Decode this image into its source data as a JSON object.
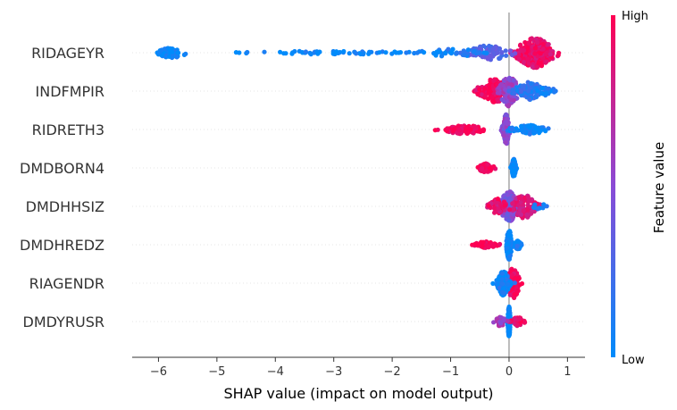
{
  "chart_data": {
    "type": "scatter",
    "subtype": "shap-beeswarm",
    "title": "",
    "xlabel": "SHAP value (impact on model output)",
    "ylabel": "",
    "xlim": [
      -6.45,
      1.3
    ],
    "xticks": [
      -6,
      -5,
      -4,
      -3,
      -2,
      -1,
      0,
      1
    ],
    "xtick_labels": [
      "−6",
      "−5",
      "−4",
      "−3",
      "−2",
      "−1",
      "0",
      "1"
    ],
    "colorbar": {
      "title": "Feature value",
      "high_label": "High",
      "low_label": "Low",
      "high_color": "#ff0052",
      "low_color": "#008bfb"
    },
    "features": [
      {
        "name": "RIDAGEYR",
        "clusters": [
          {
            "center": 0.45,
            "spread": 0.3,
            "count": 280,
            "color_value": 0.92,
            "width": 1.0
          },
          {
            "center": -0.35,
            "spread": 0.35,
            "count": 70,
            "color_value": 0.3,
            "width": 0.5
          },
          {
            "center": -1.0,
            "spread": 0.6,
            "count": 40,
            "color_value": 0.05,
            "width": 0.25
          },
          {
            "center": -3.0,
            "spread": 1.3,
            "count": 60,
            "color_value": 0.02,
            "width": 0.12
          },
          {
            "center": -5.8,
            "spread": 0.25,
            "count": 60,
            "color_value": 0.0,
            "width": 0.35
          }
        ]
      },
      {
        "name": "INDFMPIR",
        "clusters": [
          {
            "center": -0.25,
            "spread": 0.25,
            "count": 150,
            "color_value": 0.95,
            "width": 0.8
          },
          {
            "center": 0.0,
            "spread": 0.15,
            "count": 140,
            "color_value": 0.55,
            "width": 1.0
          },
          {
            "center": 0.35,
            "spread": 0.25,
            "count": 90,
            "color_value": 0.15,
            "width": 0.6
          },
          {
            "center": 0.65,
            "spread": 0.12,
            "count": 20,
            "color_value": 0.05,
            "width": 0.3
          }
        ]
      },
      {
        "name": "RIDRETH3",
        "clusters": [
          {
            "center": -0.05,
            "spread": 0.05,
            "count": 160,
            "color_value": 0.5,
            "width": 1.0
          },
          {
            "center": -0.75,
            "spread": 0.35,
            "count": 90,
            "color_value": 0.97,
            "width": 0.3
          },
          {
            "center": 0.35,
            "spread": 0.3,
            "count": 80,
            "color_value": 0.03,
            "width": 0.3
          }
        ]
      },
      {
        "name": "DMDBORN4",
        "clusters": [
          {
            "center": 0.08,
            "spread": 0.03,
            "count": 150,
            "color_value": 0.0,
            "width": 0.6
          },
          {
            "center": -0.4,
            "spread": 0.12,
            "count": 80,
            "color_value": 0.98,
            "width": 0.3
          }
        ]
      },
      {
        "name": "DMDHHSIZ",
        "clusters": [
          {
            "center": 0.0,
            "spread": 0.15,
            "count": 160,
            "color_value": 0.45,
            "width": 1.0
          },
          {
            "center": 0.25,
            "spread": 0.2,
            "count": 100,
            "color_value": 0.85,
            "width": 0.8
          },
          {
            "center": -0.2,
            "spread": 0.15,
            "count": 60,
            "color_value": 0.9,
            "width": 0.5
          },
          {
            "center": 0.55,
            "spread": 0.15,
            "count": 10,
            "color_value": 0.05,
            "width": 0.2
          }
        ]
      },
      {
        "name": "DMDHREDZ",
        "clusters": [
          {
            "center": 0.0,
            "spread": 0.04,
            "count": 150,
            "color_value": 0.0,
            "width": 1.0
          },
          {
            "center": -0.4,
            "spread": 0.18,
            "count": 80,
            "color_value": 0.98,
            "width": 0.2
          },
          {
            "center": 0.15,
            "spread": 0.06,
            "count": 40,
            "color_value": 0.05,
            "width": 0.3
          }
        ]
      },
      {
        "name": "RIAGENDR",
        "clusters": [
          {
            "center": 0.07,
            "spread": 0.1,
            "count": 160,
            "color_value": 0.95,
            "width": 1.0
          },
          {
            "center": -0.1,
            "spread": 0.1,
            "count": 150,
            "color_value": 0.05,
            "width": 0.8
          }
        ]
      },
      {
        "name": "DMDYRUSR",
        "clusters": [
          {
            "center": 0.0,
            "spread": 0.02,
            "count": 200,
            "color_value": 0.0,
            "width": 1.0
          },
          {
            "center": 0.15,
            "spread": 0.1,
            "count": 50,
            "color_value": 0.95,
            "width": 0.3
          },
          {
            "center": -0.15,
            "spread": 0.1,
            "count": 40,
            "color_value": 0.6,
            "width": 0.3
          }
        ]
      }
    ]
  }
}
